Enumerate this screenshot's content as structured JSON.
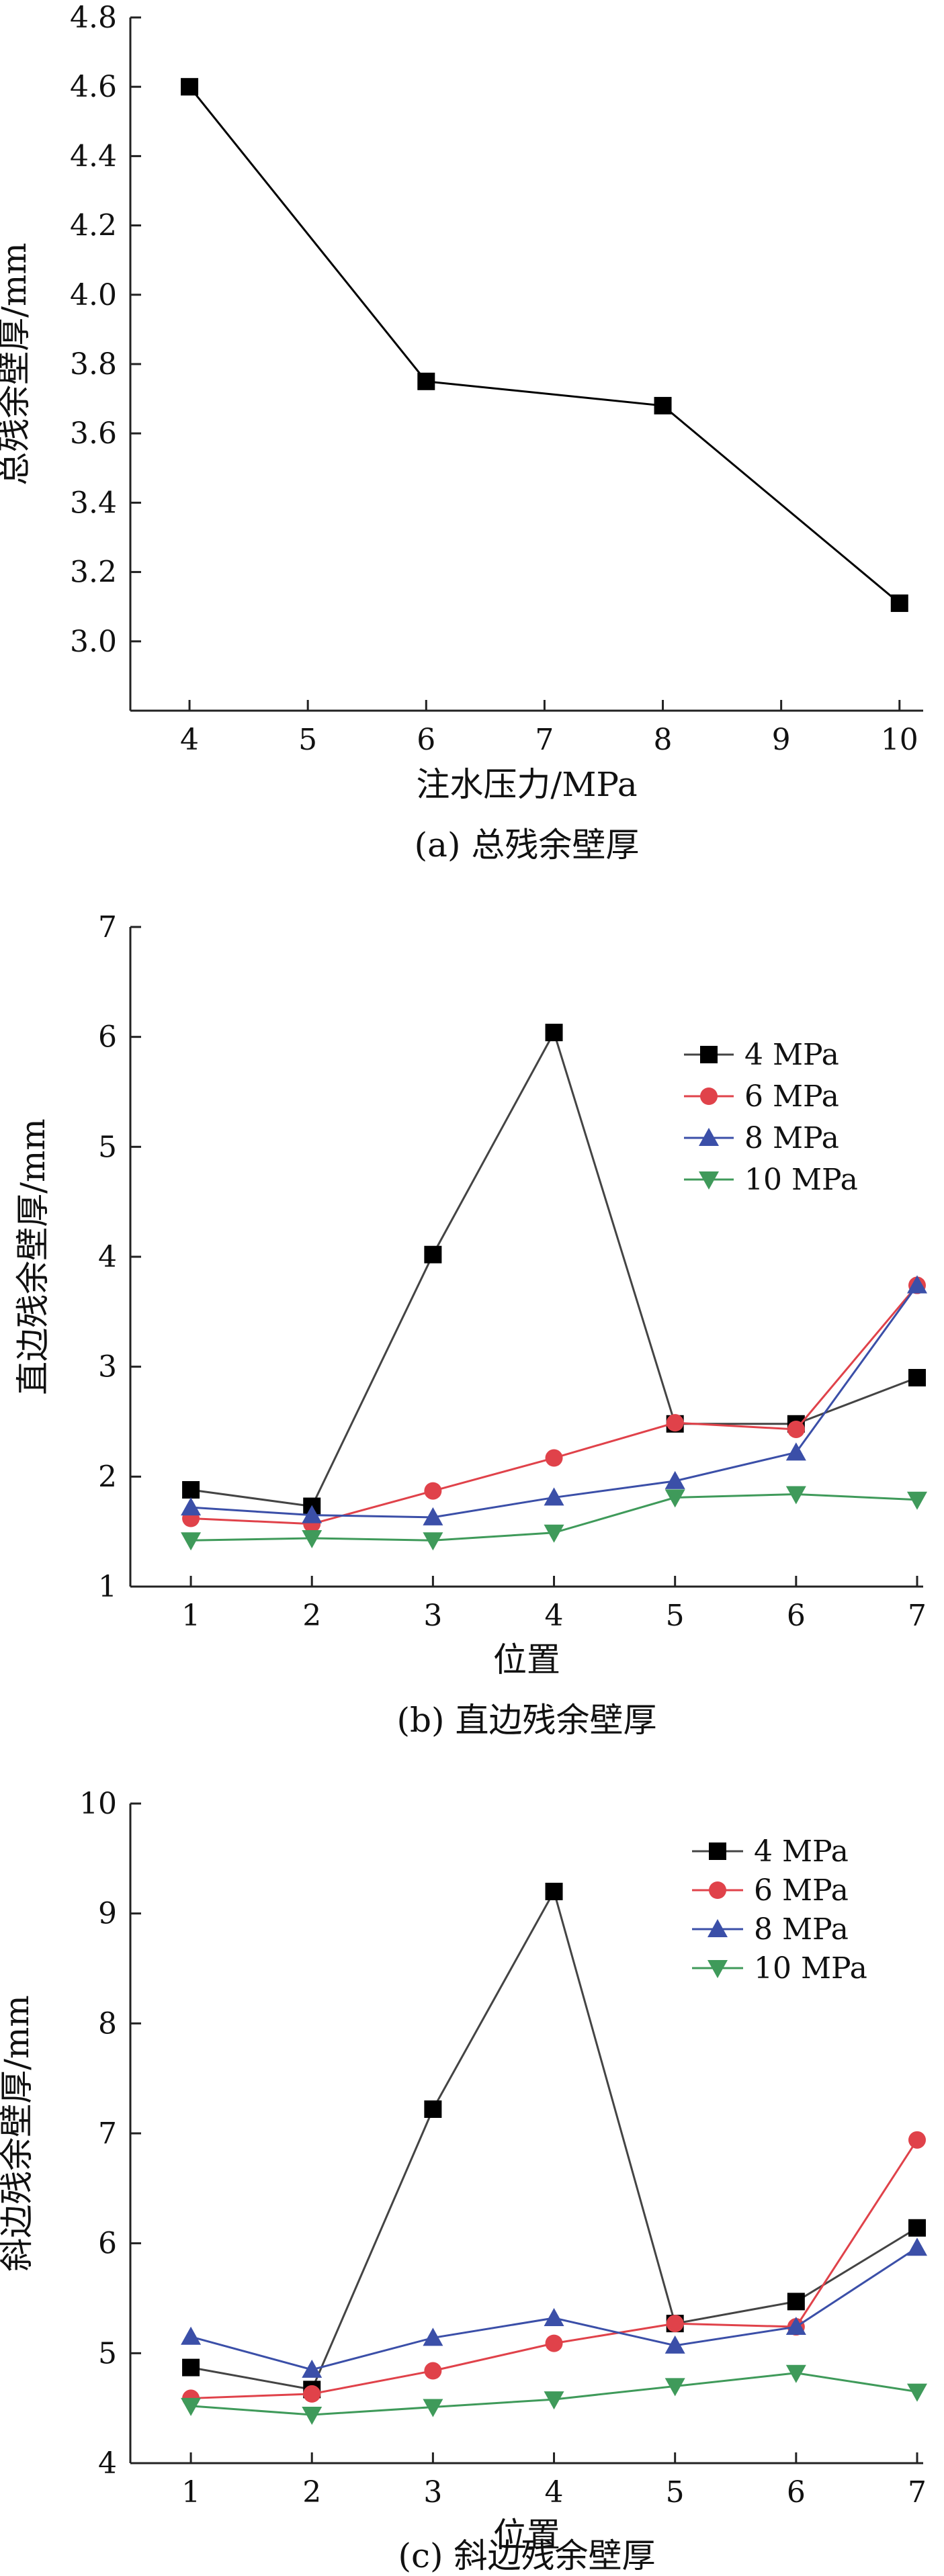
{
  "chart_data": [
    {
      "type": "line",
      "caption": "(a) 总残余壁厚",
      "xlabel": "注水压力/MPa",
      "ylabel": "总残余壁厚/mm",
      "xlim": [
        3.5,
        10.2
      ],
      "ylim": [
        2.8,
        4.8
      ],
      "x_ticks": [
        4,
        5,
        6,
        7,
        8,
        9,
        10
      ],
      "y_ticks": [
        3.0,
        3.2,
        3.4,
        3.6,
        3.8,
        4.0,
        4.2,
        4.4,
        4.6,
        4.8
      ],
      "y_tick_labels": [
        "3.0",
        "3.2",
        "3.4",
        "3.6",
        "3.8",
        "4.0",
        "4.2",
        "4.4",
        "4.6",
        "4.8"
      ],
      "series": [
        {
          "x": [
            4,
            6,
            8,
            10
          ],
          "values": [
            4.6,
            3.75,
            3.68,
            3.11
          ],
          "color": "#000000",
          "marker": "square"
        }
      ]
    },
    {
      "type": "line",
      "caption": "(b) 直边残余壁厚",
      "xlabel": "位置",
      "ylabel": "直边残余壁厚/mm",
      "xlim": [
        0.5,
        7.05
      ],
      "ylim": [
        1,
        7
      ],
      "x_ticks": [
        1,
        2,
        3,
        4,
        5,
        6,
        7
      ],
      "y_ticks": [
        1,
        2,
        3,
        4,
        5,
        6,
        7
      ],
      "legend_position": "top-right",
      "series": [
        {
          "name": "4 MPa",
          "x": [
            1,
            2,
            3,
            4,
            5,
            6,
            7
          ],
          "values": [
            1.88,
            1.73,
            4.02,
            6.04,
            2.48,
            2.48,
            2.9
          ],
          "color": "#000000",
          "line_color": "#444444",
          "marker": "square"
        },
        {
          "name": "6 MPa",
          "x": [
            1,
            2,
            3,
            4,
            5,
            6,
            7
          ],
          "values": [
            1.62,
            1.57,
            1.87,
            2.17,
            2.49,
            2.43,
            3.74
          ],
          "color": "#e0424a",
          "line_color": "#e0424a",
          "marker": "circle"
        },
        {
          "name": "8 MPa",
          "x": [
            1,
            2,
            3,
            4,
            5,
            6,
            7
          ],
          "values": [
            1.72,
            1.65,
            1.63,
            1.81,
            1.96,
            2.22,
            3.74
          ],
          "color": "#3b4fa8",
          "line_color": "#3b4fa8",
          "marker": "triangle-up"
        },
        {
          "name": "10 MPa",
          "x": [
            1,
            2,
            3,
            4,
            5,
            6,
            7
          ],
          "values": [
            1.42,
            1.44,
            1.42,
            1.49,
            1.81,
            1.84,
            1.79
          ],
          "color": "#3f9a5a",
          "line_color": "#3f9a5a",
          "marker": "triangle-down"
        }
      ]
    },
    {
      "type": "line",
      "caption": "(c) 斜边残余壁厚",
      "xlabel": "位置",
      "ylabel": "斜边残余壁厚/mm",
      "xlim": [
        0.5,
        7.05
      ],
      "ylim": [
        4,
        10
      ],
      "x_ticks": [
        1,
        2,
        3,
        4,
        5,
        6,
        7
      ],
      "y_ticks": [
        4,
        5,
        6,
        7,
        8,
        9,
        10
      ],
      "legend_position": "top-right",
      "series": [
        {
          "name": "4 MPa",
          "x": [
            1,
            2,
            3,
            4,
            5,
            6,
            7
          ],
          "values": [
            4.87,
            4.67,
            7.22,
            9.2,
            5.27,
            5.47,
            6.14
          ],
          "color": "#000000",
          "line_color": "#444444",
          "marker": "square"
        },
        {
          "name": "6 MPa",
          "x": [
            1,
            2,
            3,
            4,
            5,
            6,
            7
          ],
          "values": [
            4.59,
            4.63,
            4.84,
            5.09,
            5.27,
            5.24,
            6.94
          ],
          "color": "#e0424a",
          "line_color": "#e0424a",
          "marker": "circle"
        },
        {
          "name": "8 MPa",
          "x": [
            1,
            2,
            3,
            4,
            5,
            6,
            7
          ],
          "values": [
            5.15,
            4.85,
            5.14,
            5.32,
            5.07,
            5.24,
            5.96
          ],
          "color": "#3b4fa8",
          "line_color": "#3b4fa8",
          "marker": "triangle-up"
        },
        {
          "name": "10 MPa",
          "x": [
            1,
            2,
            3,
            4,
            5,
            6,
            7
          ],
          "values": [
            4.52,
            4.44,
            4.51,
            4.58,
            4.7,
            4.82,
            4.65
          ],
          "color": "#3f9a5a",
          "line_color": "#3f9a5a",
          "marker": "triangle-down"
        }
      ]
    }
  ]
}
